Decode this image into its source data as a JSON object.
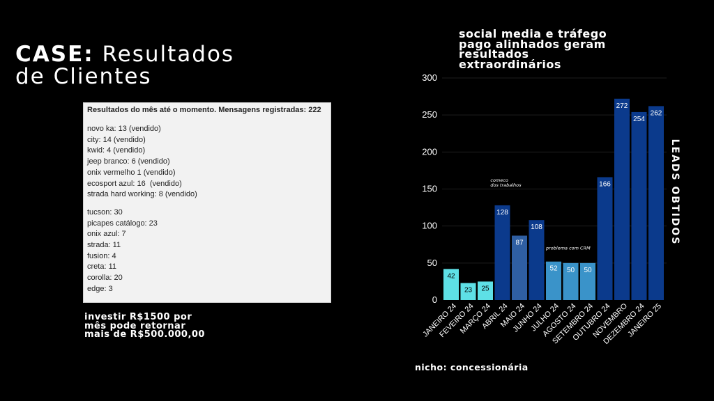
{
  "title": {
    "bold": "CASE:",
    "rest": " Resultados",
    "line2": "de Clientes"
  },
  "screenshot_text": {
    "header": "Resultados do mês até o momento. Mensagens registradas: 222",
    "sold": [
      "novo ka: 13 (vendido)",
      "city: 14 (vendido)",
      "kwid: 4 (vendido)",
      "jeep branco: 6 (vendido)",
      "onix vermelho 1 (vendido)",
      "ecosport azul: 16  (vendido)",
      "strada hard working: 8 (vendido)"
    ],
    "others": [
      "tucson: 30",
      "picapes catálogo: 23",
      "onix azul: 7",
      "strada: 11",
      "fusion: 4",
      "creta: 11",
      "corolla: 20",
      "edge: 3"
    ]
  },
  "invest_text": [
    "investir R$1500 por",
    "mês pode retornar",
    "mais de R$500.000,00"
  ],
  "headline": [
    "social media e tráfego",
    "pago alinhados geram",
    "resultados",
    "extraordinários"
  ],
  "nicho": "nicho: concessionária",
  "chart_data": {
    "type": "bar",
    "categories": [
      "JANEIRO 24",
      "FEVEIRO 24",
      "MARÇO 24",
      "ABRIL 24",
      "MAIO 24",
      "JUNHO 24",
      "JULHO 24",
      "AGOSTO 24",
      "SETEMBRO 24",
      "OUTUBRO 24",
      "NOVEMBRO",
      "DEZEMBRO 24",
      "JANEIRO 25"
    ],
    "values": [
      42,
      23,
      25,
      128,
      87,
      108,
      52,
      50,
      50,
      166,
      272,
      254,
      262
    ],
    "bar_colors": [
      "#5ee0e6",
      "#5ee0e6",
      "#5ee0e6",
      "#0b3a8c",
      "#2f5fa3",
      "#0b3a8c",
      "#3a93c9",
      "#3a93c9",
      "#3a93c9",
      "#0b3a8c",
      "#0b3a8c",
      "#0b3a8c",
      "#0b3a8c"
    ],
    "label_colors": [
      "#000000",
      "#000000",
      "#000000",
      "#ffffff",
      "#ffffff",
      "#ffffff",
      "#ffffff",
      "#ffffff",
      "#ffffff",
      "#ffffff",
      "#ffffff",
      "#ffffff",
      "#ffffff"
    ],
    "yticks": [
      0,
      50,
      100,
      150,
      200,
      250,
      300
    ],
    "ylim": [
      0,
      300
    ],
    "ylabel": "LEADS OBTIDOS",
    "annotations": [
      {
        "lines": [
          "comeco",
          "dos trabalhos"
        ],
        "x_index": 2.75,
        "y": 160
      },
      {
        "lines": [
          "problema com CRM"
        ],
        "x_index": 6.0,
        "y": 68
      }
    ]
  }
}
